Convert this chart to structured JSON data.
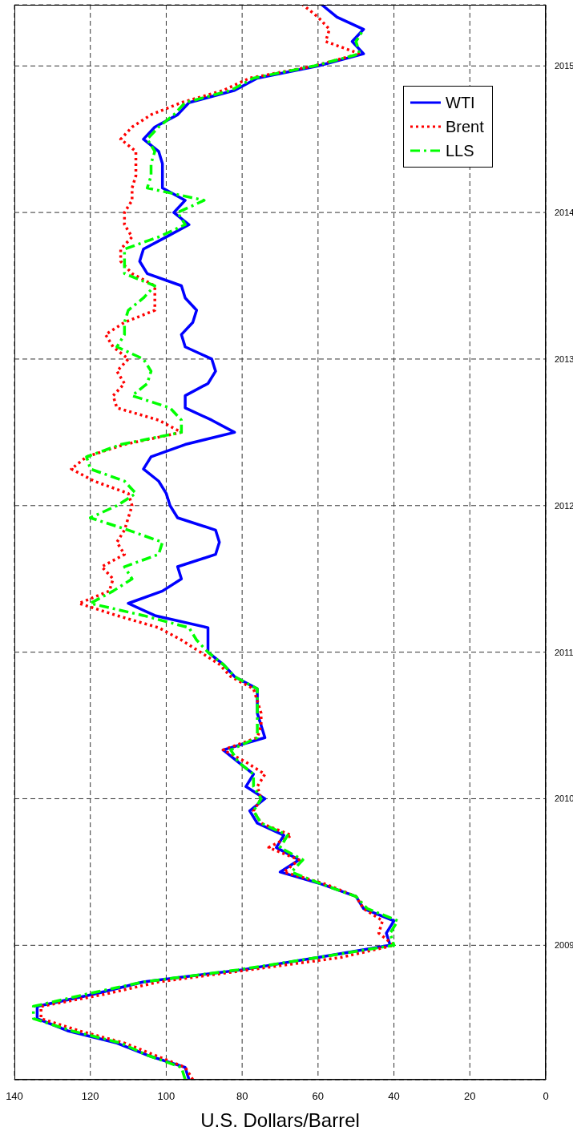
{
  "chart_data": {
    "type": "line",
    "orientation": "horizontal",
    "xlabel": "U.S. Dollars/Barrel",
    "x": [
      2008.083,
      2008.167,
      2008.25,
      2008.333,
      2008.417,
      2008.5,
      2008.583,
      2008.667,
      2008.75,
      2008.833,
      2008.917,
      2009,
      2009.083,
      2009.167,
      2009.25,
      2009.333,
      2009.417,
      2009.5,
      2009.583,
      2009.667,
      2009.75,
      2009.833,
      2009.917,
      2010,
      2010.083,
      2010.167,
      2010.25,
      2010.333,
      2010.417,
      2010.5,
      2010.583,
      2010.667,
      2010.75,
      2010.833,
      2010.917,
      2011,
      2011.083,
      2011.167,
      2011.25,
      2011.333,
      2011.417,
      2011.5,
      2011.583,
      2011.667,
      2011.75,
      2011.833,
      2011.917,
      2012,
      2012.083,
      2012.167,
      2012.25,
      2012.333,
      2012.417,
      2012.5,
      2012.583,
      2012.667,
      2012.75,
      2012.833,
      2012.917,
      2013,
      2013.083,
      2013.167,
      2013.25,
      2013.333,
      2013.417,
      2013.5,
      2013.583,
      2013.667,
      2013.75,
      2013.833,
      2013.917,
      2014,
      2014.083,
      2014.167,
      2014.25,
      2014.333,
      2014.417,
      2014.5,
      2014.583,
      2014.667,
      2014.75,
      2014.833,
      2014.917,
      2015,
      2015.083,
      2015.167,
      2015.25,
      2015.333,
      2015.417
    ],
    "series": [
      {
        "name": "WTI",
        "color": "#0000ff",
        "line_style": "solid",
        "values": [
          94,
          95,
          105,
          113,
          126,
          134,
          134,
          119,
          106,
          80,
          60,
          41,
          42,
          40,
          48,
          50,
          59,
          70,
          65,
          71,
          69,
          76,
          78,
          74,
          79,
          77,
          81,
          85,
          74,
          75,
          76,
          76,
          76,
          82,
          85,
          89,
          89,
          89,
          103,
          110,
          101,
          96,
          97,
          87,
          86,
          87,
          97,
          99,
          100,
          102,
          106,
          104,
          95,
          82,
          88,
          95,
          95,
          89,
          87,
          88,
          95,
          96,
          93,
          92,
          95,
          96,
          105,
          107,
          106,
          100,
          94,
          98,
          95,
          101,
          101,
          101,
          102,
          106,
          103,
          97,
          94,
          82,
          76,
          60,
          48,
          51,
          48,
          55,
          59
        ]
      },
      {
        "name": "Brent",
        "color": "#ff0000",
        "line_style": "dotted",
        "values": [
          93,
          95,
          103,
          111,
          123,
          133,
          133,
          116,
          102,
          78,
          54,
          40,
          44,
          43,
          48,
          50,
          58,
          69,
          65,
          73,
          67,
          75,
          77,
          75,
          76,
          74,
          79,
          85,
          76,
          75,
          75,
          76,
          77,
          83,
          86,
          91,
          96,
          102,
          113,
          123,
          115,
          114,
          117,
          111,
          113,
          111,
          110,
          109,
          110,
          119,
          125,
          121,
          111,
          96,
          102,
          113,
          114,
          111,
          113,
          110,
          114,
          116,
          111,
          103,
          103,
          103,
          109,
          112,
          112,
          109,
          111,
          111,
          109,
          109,
          108,
          108,
          108,
          112,
          109,
          104,
          96,
          85,
          78,
          61,
          49,
          58,
          57,
          60,
          64
        ]
      },
      {
        "name": "LLS",
        "color": "#00ff00",
        "line_style": "dashdot",
        "values": [
          95,
          96,
          105,
          112,
          125,
          135,
          135,
          121,
          106,
          81,
          60,
          40,
          41,
          39,
          47,
          50,
          59,
          67,
          64,
          70,
          68,
          75,
          77,
          75,
          77,
          77,
          81,
          83,
          76,
          76,
          76,
          76,
          76,
          82,
          85,
          89,
          92,
          94,
          106,
          120,
          114,
          109,
          111,
          102,
          101,
          110,
          120,
          113,
          108,
          111,
          120,
          121,
          112,
          96,
          96,
          99,
          109,
          105,
          104,
          106,
          113,
          111,
          111,
          110,
          106,
          103,
          111,
          111,
          111,
          102,
          95,
          97,
          90,
          105,
          104,
          104,
          103,
          105,
          102,
          98,
          95,
          83,
          77,
          61,
          49,
          50,
          48,
          null,
          null
        ]
      }
    ],
    "ylim": [
      2008.083,
      2015.417
    ],
    "yticks": [
      2009,
      2010,
      2011,
      2012,
      2013,
      2014,
      2015
    ],
    "xlim": [
      140,
      0
    ],
    "xticks": [
      0,
      20,
      40,
      60,
      80,
      100,
      120,
      140
    ],
    "grid": true,
    "legend": "top right"
  }
}
